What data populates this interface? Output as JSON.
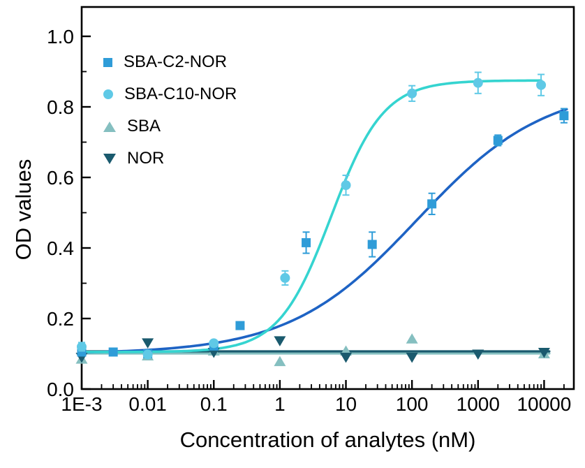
{
  "figure": {
    "x_axis_label": "Concentration of analytes (nM)",
    "y_axis_label": "OD values"
  },
  "chart_data": {
    "type": "scatter",
    "x_scale": "log",
    "x_log10_range": [
      -3,
      4.45
    ],
    "ylim": [
      0,
      1.0
    ],
    "grid": false,
    "x_ticks": [
      {
        "value": 0.001,
        "label": "1E-3"
      },
      {
        "value": 0.01,
        "label": "0.01"
      },
      {
        "value": 0.1,
        "label": "0.1"
      },
      {
        "value": 1,
        "label": "1"
      },
      {
        "value": 10,
        "label": "10"
      },
      {
        "value": 100,
        "label": "100"
      },
      {
        "value": 1000,
        "label": "1000"
      },
      {
        "value": 10000,
        "label": "10000"
      }
    ],
    "y_ticks": [
      {
        "value": 0.0,
        "label": "0.0"
      },
      {
        "value": 0.2,
        "label": "0.2"
      },
      {
        "value": 0.4,
        "label": "0.4"
      },
      {
        "value": 0.6,
        "label": "0.6"
      },
      {
        "value": 0.8,
        "label": "0.8"
      },
      {
        "value": 1.0,
        "label": "1.0"
      }
    ],
    "series": [
      {
        "name": "SBA-C2-NOR",
        "marker": "square",
        "marker_color": "#2F9CD8",
        "line_color": "#1E63C4",
        "fit": {
          "type": "logistic",
          "bottom": 0.1,
          "top": 0.86,
          "ec50": 120,
          "hill": 0.45,
          "x_end": 22000
        },
        "points": [
          [
            0.001,
            0.105
          ],
          [
            0.003,
            0.105
          ],
          [
            0.01,
            0.1
          ],
          [
            0.1,
            0.122
          ],
          [
            0.25,
            0.18
          ],
          [
            2.5,
            0.415,
            0.03
          ],
          [
            25,
            0.41,
            0.035
          ],
          [
            200,
            0.525,
            0.03
          ],
          [
            2000,
            0.705,
            0.015
          ],
          [
            20000,
            0.775,
            0.02
          ]
        ]
      },
      {
        "name": "SBA-C10-NOR",
        "marker": "circle",
        "marker_color": "#5FC9E6",
        "line_color": "#35D4D0",
        "fit": {
          "type": "logistic",
          "bottom": 0.105,
          "top": 0.875,
          "ec50": 6,
          "hill": 1.1,
          "x_end": 9000
        },
        "points": [
          [
            0.001,
            0.12,
            0.012
          ],
          [
            0.01,
            0.098
          ],
          [
            0.1,
            0.13
          ],
          [
            1.2,
            0.315,
            0.02
          ],
          [
            10,
            0.578,
            0.028
          ],
          [
            100,
            0.838,
            0.022
          ],
          [
            1000,
            0.868,
            0.03
          ],
          [
            9000,
            0.862,
            0.03
          ]
        ]
      },
      {
        "name": "SBA",
        "marker": "triangle-up",
        "marker_color": "#85BFC0",
        "line_color": "#85BFC0",
        "fit": {
          "type": "flat",
          "y": 0.101,
          "x_end": 12000
        },
        "points": [
          [
            0.001,
            0.085
          ],
          [
            0.01,
            0.094
          ],
          [
            0.1,
            0.108
          ],
          [
            1,
            0.078
          ],
          [
            10,
            0.108
          ],
          [
            100,
            0.142
          ],
          [
            10000,
            0.1
          ]
        ]
      },
      {
        "name": "NOR",
        "marker": "triangle-down",
        "marker_color": "#1A5A6E",
        "line_color": "#1A5A6E",
        "fit": {
          "type": "flat",
          "y": 0.107,
          "x_end": 12000
        },
        "points": [
          [
            0.001,
            0.09
          ],
          [
            0.01,
            0.131
          ],
          [
            0.1,
            0.104
          ],
          [
            1,
            0.137
          ],
          [
            10,
            0.09
          ],
          [
            100,
            0.09
          ],
          [
            1000,
            0.099
          ],
          [
            10000,
            0.104
          ]
        ]
      }
    ],
    "legend": {
      "position": "top-left",
      "entries": [
        "SBA-C2-NOR",
        "SBA-C10-NOR",
        "SBA",
        "NOR"
      ]
    }
  }
}
